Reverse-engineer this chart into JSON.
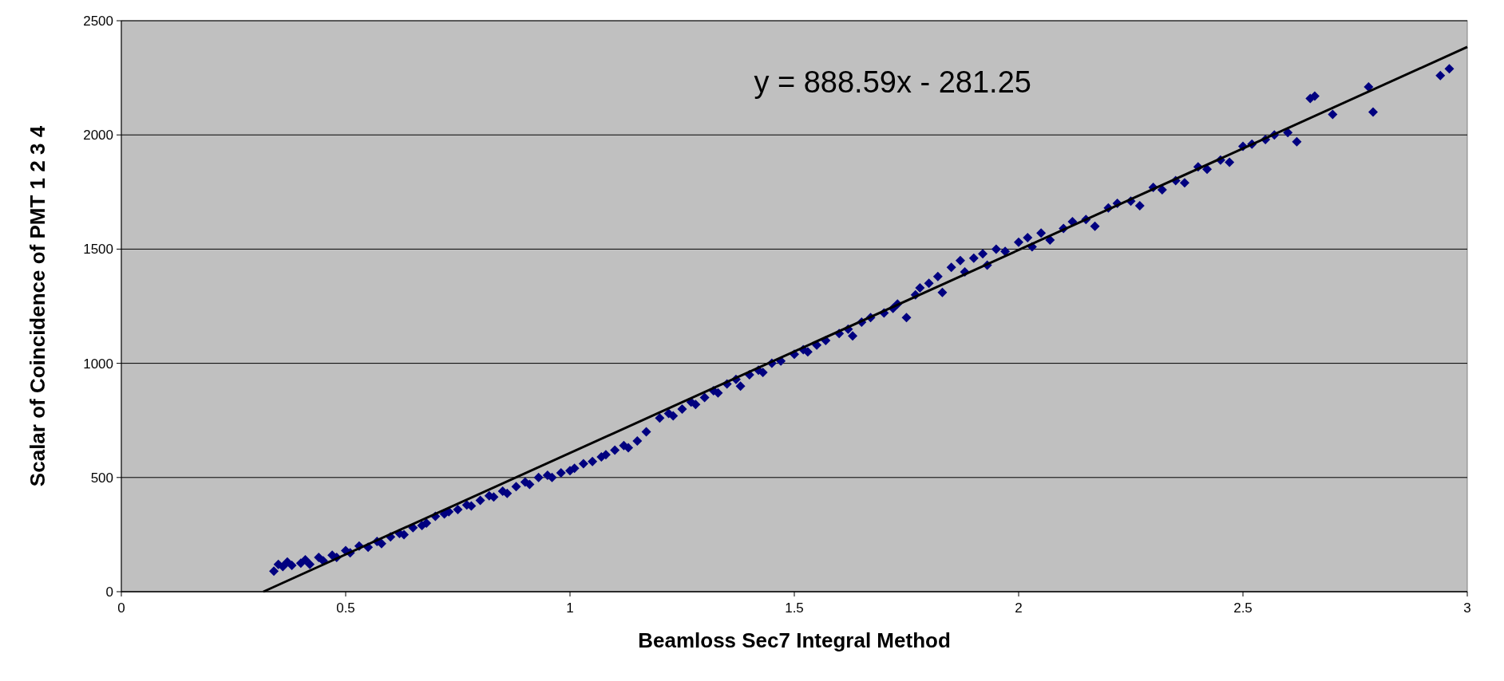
{
  "chart_data": {
    "type": "scatter",
    "xlabel": "Beamloss Sec7 Integral Method",
    "ylabel": "Scalar of Coincidence of PMT 1 2 3 4",
    "xlim": [
      0,
      3
    ],
    "xticks": [
      0,
      0.5,
      1,
      1.5,
      2,
      2.5,
      3
    ],
    "ylim": [
      0,
      2500
    ],
    "yticks": [
      0,
      500,
      1000,
      1500,
      2000,
      2500
    ],
    "grid": "y",
    "marker": "diamond",
    "annotations": [
      "y = 888.59x - 281.25"
    ],
    "series": [
      {
        "color": "#000080",
        "x": [
          0.34,
          0.35,
          0.36,
          0.37,
          0.38,
          0.4,
          0.41,
          0.42,
          0.44,
          0.45,
          0.47,
          0.48,
          0.5,
          0.51,
          0.53,
          0.55,
          0.57,
          0.58,
          0.6,
          0.62,
          0.63,
          0.65,
          0.67,
          0.68,
          0.7,
          0.72,
          0.73,
          0.75,
          0.77,
          0.78,
          0.8,
          0.82,
          0.83,
          0.85,
          0.86,
          0.88,
          0.9,
          0.91,
          0.93,
          0.95,
          0.96,
          0.98,
          1.0,
          1.01,
          1.03,
          1.05,
          1.07,
          1.08,
          1.1,
          1.12,
          1.13,
          1.15,
          1.17,
          1.2,
          1.22,
          1.23,
          1.25,
          1.27,
          1.28,
          1.3,
          1.32,
          1.33,
          1.35,
          1.37,
          1.38,
          1.4,
          1.42,
          1.43,
          1.45,
          1.47,
          1.5,
          1.52,
          1.53,
          1.55,
          1.57,
          1.6,
          1.62,
          1.63,
          1.65,
          1.67,
          1.7,
          1.72,
          1.73,
          1.75,
          1.77,
          1.78,
          1.8,
          1.82,
          1.83,
          1.85,
          1.87,
          1.88,
          1.9,
          1.92,
          1.93,
          1.95,
          1.97,
          2.0,
          2.02,
          2.03,
          2.05,
          2.07,
          2.1,
          2.12,
          2.15,
          2.17,
          2.2,
          2.22,
          2.25,
          2.27,
          2.3,
          2.32,
          2.35,
          2.37,
          2.4,
          2.42,
          2.45,
          2.47,
          2.5,
          2.52,
          2.55,
          2.57,
          2.6,
          2.62,
          2.65,
          2.66,
          2.7,
          2.78,
          2.79,
          2.94,
          2.96
        ],
        "values": [
          90,
          120,
          110,
          130,
          115,
          125,
          140,
          120,
          150,
          135,
          160,
          150,
          180,
          170,
          200,
          195,
          220,
          210,
          240,
          255,
          250,
          280,
          290,
          300,
          330,
          340,
          350,
          360,
          380,
          375,
          400,
          420,
          415,
          440,
          430,
          460,
          480,
          470,
          500,
          510,
          500,
          520,
          530,
          540,
          560,
          570,
          590,
          600,
          620,
          640,
          630,
          660,
          700,
          760,
          780,
          770,
          800,
          830,
          820,
          850,
          880,
          870,
          910,
          930,
          900,
          950,
          970,
          960,
          1000,
          1010,
          1040,
          1060,
          1050,
          1080,
          1100,
          1130,
          1150,
          1120,
          1180,
          1200,
          1220,
          1240,
          1260,
          1200,
          1300,
          1330,
          1350,
          1380,
          1310,
          1420,
          1450,
          1400,
          1460,
          1480,
          1430,
          1500,
          1490,
          1530,
          1550,
          1510,
          1570,
          1540,
          1590,
          1620,
          1630,
          1600,
          1680,
          1700,
          1710,
          1690,
          1770,
          1760,
          1800,
          1790,
          1860,
          1850,
          1890,
          1880,
          1950,
          1960,
          1980,
          2000,
          2010,
          1970,
          2160,
          2170,
          2090,
          2210,
          2100,
          2260,
          2290
        ]
      },
      {
        "type": "line",
        "color": "#000000",
        "marker": "none",
        "line_style": "solid",
        "x": [
          0.3165,
          3
        ],
        "values": [
          0,
          2385
        ]
      }
    ]
  }
}
